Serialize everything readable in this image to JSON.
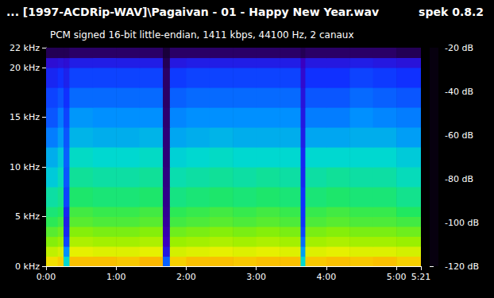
{
  "chart_data": {
    "type": "spectrogram",
    "title": "... [1997-ACDRip-WAV]\\Pagaivan - 01 - Happy New Year.wav",
    "title_right": "spek 0.8.2",
    "subtitle": "PCM signed 16-bit little-endian, 1411 kbps, 44100 Hz, 2 canaux",
    "xlim": [
      0,
      321
    ],
    "xticks": [
      {
        "value": 0,
        "label": "0:00"
      },
      {
        "value": 60,
        "label": "1:00"
      },
      {
        "value": 120,
        "label": "2:00"
      },
      {
        "value": 180,
        "label": "3:00"
      },
      {
        "value": 240,
        "label": "4:00"
      },
      {
        "value": 300,
        "label": "5:00"
      },
      {
        "value": 321,
        "label": "5:21"
      }
    ],
    "ylim": [
      0,
      22
    ],
    "yticks": [
      {
        "value": 0,
        "label": "0 kHz"
      },
      {
        "value": 5,
        "label": "5 kHz"
      },
      {
        "value": 10,
        "label": "10 kHz"
      },
      {
        "value": 15,
        "label": "15 kHz"
      },
      {
        "value": 20,
        "label": "20 kHz"
      },
      {
        "value": 22,
        "label": "22 kHz"
      }
    ],
    "time_edges": [
      0,
      10,
      15,
      20,
      40,
      60,
      80,
      100,
      106,
      120,
      140,
      160,
      180,
      200,
      218,
      222,
      240,
      260,
      280,
      300,
      321
    ],
    "freq_edges": [
      0,
      1,
      2,
      3,
      4,
      5,
      6,
      8,
      10,
      12,
      14,
      16,
      18,
      20,
      21,
      22
    ],
    "cells": [
      [
        -38,
        -36,
        -70,
        -34,
        -34,
        -35,
        -33,
        -85,
        -36,
        -34,
        -34,
        -35,
        -34,
        -34,
        -70,
        -35,
        -34,
        -35,
        -34,
        -36
      ],
      [
        -45,
        -43,
        -80,
        -41,
        -42,
        -42,
        -41,
        -95,
        -43,
        -42,
        -41,
        -42,
        -41,
        -42,
        -78,
        -42,
        -41,
        -42,
        -42,
        -43
      ],
      [
        -51,
        -49,
        -88,
        -47,
        -48,
        -48,
        -47,
        -100,
        -49,
        -48,
        -47,
        -48,
        -47,
        -48,
        -84,
        -48,
        -47,
        -48,
        -48,
        -49
      ],
      [
        -55,
        -53,
        -92,
        -51,
        -52,
        -52,
        -51,
        -102,
        -53,
        -52,
        -51,
        -52,
        -51,
        -52,
        -88,
        -52,
        -51,
        -52,
        -52,
        -53
      ],
      [
        -59,
        -57,
        -94,
        -55,
        -56,
        -56,
        -55,
        -104,
        -57,
        -56,
        -55,
        -56,
        -55,
        -56,
        -90,
        -56,
        -55,
        -56,
        -56,
        -57
      ],
      [
        -62,
        -60,
        -92,
        -57,
        -58,
        -58,
        -57,
        -105,
        -59,
        -58,
        -57,
        -58,
        -57,
        -58,
        -90,
        -58,
        -57,
        -58,
        -58,
        -60
      ],
      [
        -66,
        -64,
        -88,
        -61,
        -62,
        -62,
        -61,
        -106,
        -63,
        -62,
        -61,
        -62,
        -61,
        -62,
        -90,
        -62,
        -61,
        -62,
        -62,
        -64
      ],
      [
        -72,
        -68,
        -86,
        -65,
        -66,
        -66,
        -65,
        -107,
        -67,
        -66,
        -65,
        -66,
        -65,
        -66,
        -92,
        -66,
        -65,
        -66,
        -66,
        -68
      ],
      [
        -76,
        -72,
        -85,
        -69,
        -70,
        -70,
        -69,
        -108,
        -71,
        -70,
        -69,
        -70,
        -70,
        -70,
        -92,
        -70,
        -70,
        -70,
        -70,
        -72
      ],
      [
        -82,
        -78,
        -86,
        -75,
        -76,
        -76,
        -75,
        -108,
        -77,
        -76,
        -75,
        -76,
        -76,
        -76,
        -94,
        -77,
        -77,
        -76,
        -76,
        -78
      ],
      [
        -86,
        -82,
        -88,
        -79,
        -80,
        -80,
        -80,
        -109,
        -81,
        -80,
        -80,
        -80,
        -80,
        -80,
        -95,
        -82,
        -82,
        -80,
        -81,
        -82
      ],
      [
        -88,
        -86,
        -90,
        -84,
        -84,
        -84,
        -84,
        -110,
        -85,
        -84,
        -84,
        -84,
        -84,
        -84,
        -96,
        -86,
        -86,
        -84,
        -85,
        -86
      ],
      [
        -92,
        -90,
        -93,
        -88,
        -88,
        -88,
        -88,
        -110,
        -89,
        -88,
        -88,
        -88,
        -88,
        -88,
        -98,
        -90,
        -90,
        -88,
        -89,
        -90
      ],
      [
        -97,
        -96,
        -97,
        -94,
        -94,
        -94,
        -94,
        -112,
        -95,
        -94,
        -94,
        -94,
        -94,
        -94,
        -100,
        -95,
        -95,
        -94,
        -95,
        -96
      ],
      [
        -112,
        -112,
        -112,
        -110,
        -110,
        -110,
        -110,
        -115,
        -110,
        -110,
        -110,
        -110,
        -110,
        -110,
        -112,
        -110,
        -110,
        -110,
        -110,
        -112
      ]
    ],
    "colorbar": {
      "range": [
        -120,
        -20
      ],
      "ticks": [
        {
          "value": -20,
          "label": "-20 dB"
        },
        {
          "value": -40,
          "label": "-40 dB"
        },
        {
          "value": -60,
          "label": "-60 dB"
        },
        {
          "value": -80,
          "label": "-80 dB"
        },
        {
          "value": -100,
          "label": "-100 dB"
        },
        {
          "value": -120,
          "label": "-120 dB"
        }
      ]
    }
  }
}
